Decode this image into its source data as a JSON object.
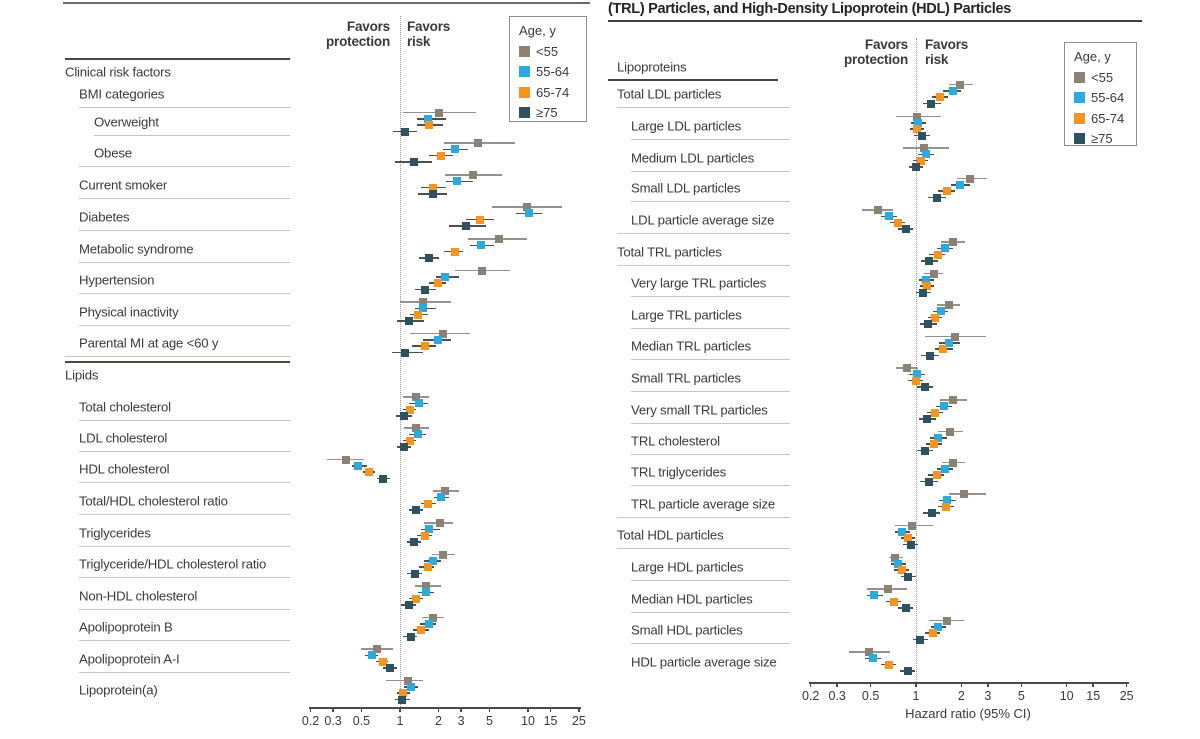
{
  "title_partial": "(TRL) Particles, and High-Density Lipoprotein (HDL) Particles",
  "headers": {
    "favors_protection": [
      "Favors",
      "protection"
    ],
    "favors_risk": [
      "Favors",
      "risk"
    ]
  },
  "legend": {
    "title": "Age, y",
    "items": [
      {
        "label": "<55",
        "color": "#8C8274"
      },
      {
        "label": "55-64",
        "color": "#29ABE2"
      },
      {
        "label": "65-74",
        "color": "#F7941E"
      },
      {
        "label": "≥75",
        "color": "#2E5360"
      }
    ]
  },
  "axis": {
    "ticks": [
      0.2,
      0.3,
      0.5,
      1,
      2,
      3,
      5,
      10,
      15,
      25
    ],
    "scale": "log",
    "label": "Hazard ratio (95% CI)"
  },
  "chart_data": [
    {
      "type": "scatter",
      "variant": "forest-plot",
      "panel": "left",
      "series_names": [
        "<55",
        "55-64",
        "65-74",
        "≥75"
      ],
      "value_format": "hazard ratio [estimate, ci_low, ci_high]",
      "rows": [
        {
          "label": "Clinical risk factors",
          "kind": "section",
          "indent": 0
        },
        {
          "label": "BMI categories",
          "kind": "subheader",
          "indent": 1
        },
        {
          "label": "Overweight",
          "indent": 2,
          "hr": [
            [
              2.0,
              1.05,
              3.95
            ],
            [
              1.65,
              1.35,
              2.3
            ],
            [
              1.7,
              1.35,
              2.15
            ],
            [
              1.1,
              0.88,
              1.35
            ]
          ]
        },
        {
          "label": "Obese",
          "indent": 2,
          "hr": [
            [
              4.1,
              2.2,
              7.9
            ],
            [
              2.7,
              2.15,
              3.4
            ],
            [
              2.1,
              1.7,
              2.6
            ],
            [
              1.28,
              0.92,
              1.78
            ]
          ]
        },
        {
          "label": "Current smoker",
          "indent": 1,
          "hr": [
            [
              3.7,
              2.25,
              6.3
            ],
            [
              2.8,
              2.3,
              3.7
            ],
            [
              1.8,
              1.45,
              2.3
            ],
            [
              1.8,
              1.38,
              2.33
            ]
          ]
        },
        {
          "label": "Diabetes",
          "indent": 1,
          "hr": [
            [
              9.9,
              5.2,
              18.5
            ],
            [
              10.1,
              8.1,
              12.8
            ],
            [
              4.2,
              3.3,
              5.4
            ],
            [
              3.3,
              2.4,
              4.7
            ]
          ]
        },
        {
          "label": "Metabolic syndrome",
          "indent": 1,
          "hr": [
            [
              5.9,
              3.4,
              9.9
            ],
            [
              4.3,
              3.5,
              5.4
            ],
            [
              2.7,
              2.2,
              3.1
            ],
            [
              1.68,
              1.42,
              2.0
            ]
          ]
        },
        {
          "label": "Hypertension",
          "indent": 1,
          "hr": [
            [
              4.4,
              2.7,
              7.3
            ],
            [
              2.25,
              1.9,
              2.9
            ],
            [
              1.97,
              1.7,
              2.3
            ],
            [
              1.56,
              1.32,
              1.9
            ]
          ]
        },
        {
          "label": "Physical inactivity",
          "indent": 1,
          "hr": [
            [
              1.5,
              1.0,
              2.5
            ],
            [
              1.52,
              1.3,
              1.9
            ],
            [
              1.38,
              1.2,
              1.65
            ],
            [
              1.17,
              0.95,
              1.55
            ]
          ]
        },
        {
          "label": "Parental MI at age <60 y",
          "indent": 1,
          "hr": [
            [
              2.15,
              1.2,
              3.5
            ],
            [
              1.97,
              1.5,
              2.5
            ],
            [
              1.56,
              1.25,
              1.9
            ],
            [
              1.1,
              0.87,
              1.5
            ]
          ]
        },
        {
          "label": "Lipids",
          "kind": "section",
          "indent": 0
        },
        {
          "label": "Total cholesterol",
          "indent": 1,
          "hr": [
            [
              1.34,
              1.05,
              1.7
            ],
            [
              1.4,
              1.18,
              1.65
            ],
            [
              1.19,
              1.05,
              1.34
            ],
            [
              1.07,
              0.93,
              1.25
            ]
          ]
        },
        {
          "label": "LDL cholesterol",
          "indent": 1,
          "hr": [
            [
              1.34,
              1.08,
              1.7
            ],
            [
              1.37,
              1.18,
              1.6
            ],
            [
              1.19,
              1.05,
              1.33
            ],
            [
              1.07,
              0.94,
              1.22
            ]
          ]
        },
        {
          "label": "HDL cholesterol",
          "indent": 1,
          "hr": [
            [
              0.38,
              0.27,
              0.52
            ],
            [
              0.47,
              0.42,
              0.55
            ],
            [
              0.57,
              0.51,
              0.64
            ],
            [
              0.74,
              0.66,
              0.83
            ]
          ]
        },
        {
          "label": "Total/HDL cholesterol ratio",
          "indent": 1,
          "hr": [
            [
              2.25,
              1.8,
              2.9
            ],
            [
              2.1,
              1.85,
              2.4
            ],
            [
              1.66,
              1.47,
              1.9
            ],
            [
              1.34,
              1.17,
              1.52
            ]
          ]
        },
        {
          "label": "Triglycerides",
          "indent": 1,
          "hr": [
            [
              2.05,
              1.55,
              2.6
            ],
            [
              1.7,
              1.45,
              2.05
            ],
            [
              1.56,
              1.35,
              1.78
            ],
            [
              1.28,
              1.13,
              1.46
            ]
          ]
        },
        {
          "label": "Triglyceride/HDL cholesterol ratio",
          "indent": 1,
          "hr": [
            [
              2.15,
              1.78,
              2.7
            ],
            [
              1.8,
              1.55,
              2.1
            ],
            [
              1.64,
              1.42,
              1.85
            ],
            [
              1.3,
              1.13,
              1.49
            ]
          ]
        },
        {
          "label": "Non-HDL cholesterol",
          "indent": 1,
          "hr": [
            [
              1.6,
              1.3,
              2.1
            ],
            [
              1.6,
              1.37,
              1.85
            ],
            [
              1.34,
              1.17,
              1.52
            ],
            [
              1.17,
              1.02,
              1.34
            ]
          ]
        },
        {
          "label": "Apolipoprotein B",
          "indent": 1,
          "hr": [
            [
              1.82,
              1.49,
              2.22
            ],
            [
              1.67,
              1.44,
              1.92
            ],
            [
              1.46,
              1.27,
              1.67
            ],
            [
              1.21,
              1.05,
              1.37
            ]
          ]
        },
        {
          "label": "Apolipoprotein A-I",
          "indent": 1,
          "hr": [
            [
              0.66,
              0.5,
              0.88
            ],
            [
              0.6,
              0.53,
              0.67
            ],
            [
              0.73,
              0.65,
              0.81
            ],
            [
              0.84,
              0.74,
              0.95
            ]
          ]
        },
        {
          "label": "Lipoprotein(a)",
          "indent": 1,
          "last": true,
          "hr": [
            [
              1.15,
              0.78,
              1.52
            ],
            [
              1.22,
              1.07,
              1.39
            ],
            [
              1.05,
              0.94,
              1.19
            ],
            [
              1.04,
              0.91,
              1.19
            ]
          ]
        }
      ]
    },
    {
      "type": "scatter",
      "variant": "forest-plot",
      "panel": "right",
      "series_names": [
        "<55",
        "55-64",
        "65-74",
        "≥75"
      ],
      "value_format": "hazard ratio [estimate, ci_low, ci_high]",
      "rows": [
        {
          "label": "Lipoproteins",
          "kind": "header",
          "indent": 0
        },
        {
          "label": "Total LDL particles",
          "indent": 0,
          "hr": [
            [
              1.95,
              1.65,
              2.4
            ],
            [
              1.75,
              1.5,
              2.0
            ],
            [
              1.44,
              1.27,
              1.63
            ],
            [
              1.26,
              1.11,
              1.46
            ]
          ]
        },
        {
          "label": "Large LDL particles",
          "indent": 1,
          "hr": [
            [
              1.02,
              0.74,
              1.46
            ],
            [
              1.03,
              0.93,
              1.16
            ],
            [
              1.01,
              0.91,
              1.13
            ],
            [
              1.1,
              0.97,
              1.24
            ]
          ]
        },
        {
          "label": "Medium LDL particles",
          "indent": 1,
          "hr": [
            [
              1.13,
              0.82,
              1.65
            ],
            [
              1.16,
              1.03,
              1.32
            ],
            [
              1.08,
              0.96,
              1.2
            ],
            [
              1.0,
              0.9,
              1.12
            ]
          ]
        },
        {
          "label": "Small LDL particles",
          "indent": 1,
          "hr": [
            [
              2.27,
              1.88,
              2.97
            ],
            [
              1.95,
              1.7,
              2.27
            ],
            [
              1.6,
              1.41,
              1.81
            ],
            [
              1.38,
              1.2,
              1.58
            ]
          ]
        },
        {
          "label": "LDL particle average size",
          "indent": 1,
          "hr": [
            [
              0.56,
              0.44,
              0.7
            ],
            [
              0.66,
              0.59,
              0.75
            ],
            [
              0.76,
              0.67,
              0.85
            ],
            [
              0.86,
              0.76,
              0.96
            ]
          ]
        },
        {
          "label": "Total TRL particles",
          "indent": 0,
          "hr": [
            [
              1.77,
              1.46,
              2.1
            ],
            [
              1.55,
              1.38,
              1.77
            ],
            [
              1.39,
              1.22,
              1.55
            ],
            [
              1.22,
              1.08,
              1.39
            ]
          ]
        },
        {
          "label": "Very large TRL particles",
          "indent": 1,
          "hr": [
            [
              1.31,
              1.13,
              1.5
            ],
            [
              1.16,
              1.05,
              1.31
            ],
            [
              1.18,
              1.06,
              1.32
            ],
            [
              1.12,
              1.0,
              1.26
            ]
          ]
        },
        {
          "label": "Large TRL particles",
          "indent": 1,
          "hr": [
            [
              1.65,
              1.38,
              1.95
            ],
            [
              1.46,
              1.3,
              1.63
            ],
            [
              1.33,
              1.2,
              1.49
            ],
            [
              1.2,
              1.06,
              1.37
            ]
          ]
        },
        {
          "label": "Median TRL particles",
          "indent": 1,
          "hr": [
            [
              1.81,
              1.15,
              2.9
            ],
            [
              1.65,
              1.42,
              1.95
            ],
            [
              1.52,
              1.34,
              1.75
            ],
            [
              1.24,
              1.08,
              1.42
            ]
          ]
        },
        {
          "label": "Small TRL particles",
          "indent": 1,
          "hr": [
            [
              0.87,
              0.74,
              1.03
            ],
            [
              1.02,
              0.9,
              1.15
            ],
            [
              1.0,
              0.88,
              1.12
            ],
            [
              1.15,
              1.01,
              1.3
            ]
          ]
        },
        {
          "label": "Very small TRL particles",
          "indent": 1,
          "hr": [
            [
              1.76,
              1.44,
              2.18
            ],
            [
              1.54,
              1.35,
              1.73
            ],
            [
              1.34,
              1.18,
              1.5
            ],
            [
              1.19,
              1.05,
              1.36
            ]
          ]
        },
        {
          "label": "TRL cholesterol",
          "indent": 1,
          "hr": [
            [
              1.68,
              1.4,
              2.04
            ],
            [
              1.4,
              1.24,
              1.6
            ],
            [
              1.32,
              1.17,
              1.48
            ],
            [
              1.15,
              1.01,
              1.3
            ]
          ]
        },
        {
          "label": "TRL triglycerides",
          "indent": 1,
          "hr": [
            [
              1.75,
              1.48,
              2.11
            ],
            [
              1.56,
              1.37,
              1.76
            ],
            [
              1.37,
              1.2,
              1.53
            ],
            [
              1.22,
              1.06,
              1.39
            ]
          ]
        },
        {
          "label": "TRL particle average size",
          "indent": 1,
          "hr": [
            [
              2.08,
              1.66,
              2.91
            ],
            [
              1.61,
              1.42,
              1.84
            ],
            [
              1.58,
              1.39,
              1.78
            ],
            [
              1.27,
              1.12,
              1.44
            ]
          ]
        },
        {
          "label": "Total HDL particles",
          "indent": 0,
          "hr": [
            [
              0.94,
              0.73,
              1.29
            ],
            [
              0.81,
              0.72,
              0.91
            ],
            [
              0.88,
              0.79,
              0.99
            ],
            [
              0.92,
              0.82,
              1.03
            ]
          ]
        },
        {
          "label": "Large HDL particles",
          "indent": 1,
          "hr": [
            [
              0.73,
              0.66,
              0.82
            ],
            [
              0.76,
              0.68,
              0.86
            ],
            [
              0.81,
              0.71,
              0.9
            ],
            [
              0.89,
              0.79,
              1.0
            ]
          ]
        },
        {
          "label": "Median HDL particles",
          "indent": 1,
          "hr": [
            [
              0.65,
              0.47,
              0.87
            ],
            [
              0.53,
              0.47,
              0.6
            ],
            [
              0.71,
              0.63,
              0.79
            ],
            [
              0.86,
              0.76,
              0.96
            ]
          ]
        },
        {
          "label": "Small HDL particles",
          "indent": 1,
          "hr": [
            [
              1.6,
              1.22,
              2.08
            ],
            [
              1.4,
              1.25,
              1.58
            ],
            [
              1.29,
              1.15,
              1.44
            ],
            [
              1.06,
              0.95,
              1.2
            ]
          ]
        },
        {
          "label": "HDL particle average size",
          "indent": 1,
          "last": true,
          "hr": [
            [
              0.49,
              0.36,
              0.67
            ],
            [
              0.52,
              0.46,
              0.59
            ],
            [
              0.66,
              0.59,
              0.74
            ],
            [
              0.88,
              0.78,
              0.98
            ]
          ]
        }
      ]
    }
  ]
}
